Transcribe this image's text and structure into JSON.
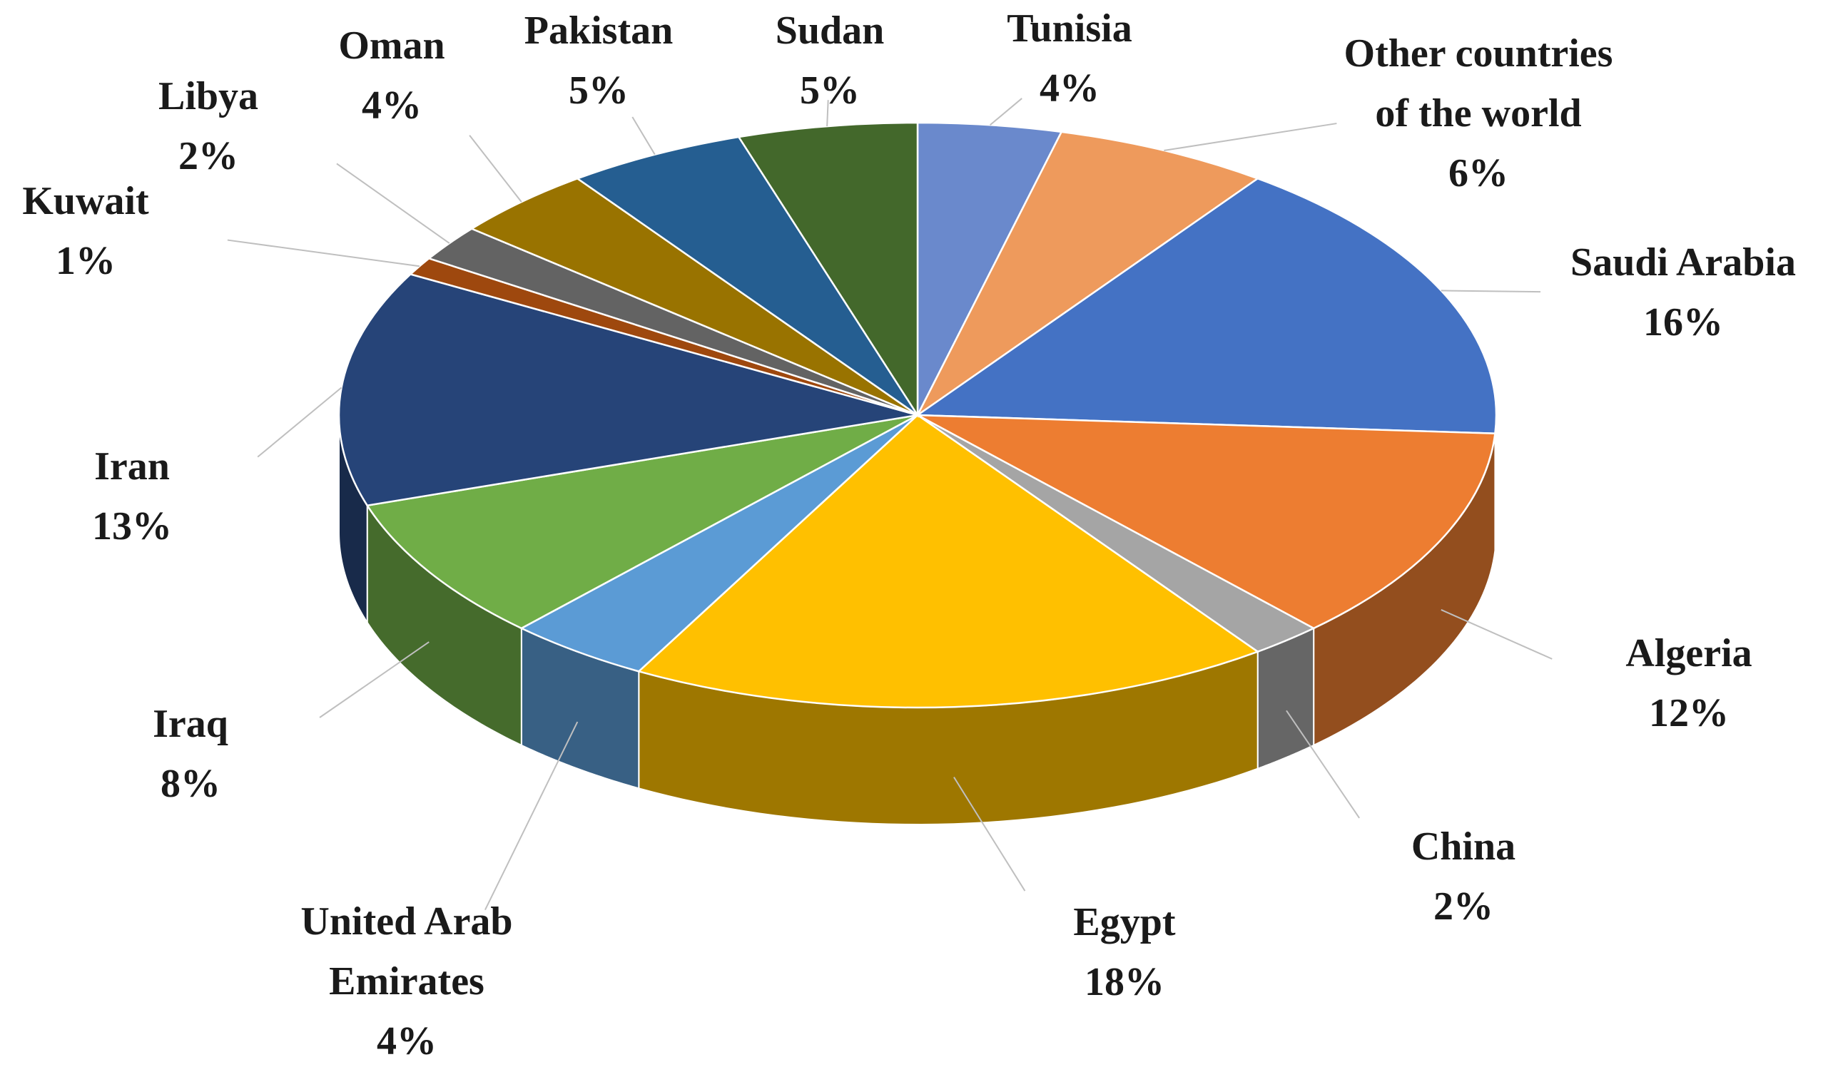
{
  "chart_data": {
    "type": "pie",
    "categories": [
      "Tunisia",
      "Other countries of the world",
      "Saudi Arabia",
      "Algeria",
      "China",
      "Egypt",
      "United Arab Emirates",
      "Iraq",
      "Iran",
      "Kuwait",
      "Libya",
      "Oman",
      "Pakistan",
      "Sudan"
    ],
    "values": [
      4,
      6,
      16,
      12,
      2,
      18,
      4,
      8,
      13,
      1,
      2,
      4,
      5,
      5
    ],
    "value_labels": [
      "4%",
      "6%",
      "16%",
      "12%",
      "2%",
      "18%",
      "4%",
      "8%",
      "13%",
      "1%",
      "2%",
      "4%",
      "5%",
      "5%"
    ],
    "colors": [
      "#6a89cc",
      "#ee9a5c",
      "#4472c4",
      "#ed7d31",
      "#a5a5a5",
      "#ffc000",
      "#5b9bd5",
      "#70ad47",
      "#264478",
      "#9e480e",
      "#636363",
      "#997300",
      "#255e91",
      "#43682b"
    ]
  }
}
